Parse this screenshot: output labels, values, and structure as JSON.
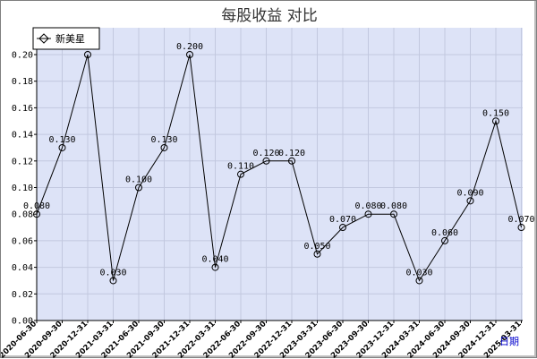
{
  "chart_data": {
    "type": "line",
    "title": "每股收益  对比",
    "xlabel": "日期",
    "ylabel": "",
    "ylim": [
      0,
      0.2
    ],
    "yticks": [
      "0.00",
      "0.02",
      "0.04",
      "0.06",
      "0.08",
      "0.10",
      "0.12",
      "0.14",
      "0.16",
      "0.18",
      "0.20"
    ],
    "grid": true,
    "legend_position": "top-left",
    "categories": [
      "2020-06-30",
      "2020-09-30",
      "2020-12-31",
      "2021-03-31",
      "2021-06-30",
      "2021-09-30",
      "2021-12-31",
      "2022-03-31",
      "2022-06-30",
      "2022-09-30",
      "2022-12-31",
      "2023-03-31",
      "2023-06-30",
      "2023-09-30",
      "2023-12-31",
      "2024-03-31",
      "2024-06-30",
      "2024-09-30",
      "2024-12-31",
      "2025-03-31"
    ],
    "series": [
      {
        "name": "新美星",
        "values": [
          0.08,
          0.13,
          0.2,
          0.03,
          0.1,
          0.13,
          0.2,
          0.04,
          0.11,
          0.12,
          0.12,
          0.05,
          0.07,
          0.08,
          0.08,
          0.03,
          0.06,
          0.09,
          0.15,
          0.07
        ],
        "labels": [
          "0.080",
          "0.130",
          "",
          "0.030",
          "0.100",
          "0.130",
          "0.200",
          "0.040",
          "0.110",
          "0.120",
          "0.120",
          "0.050",
          "0.070",
          "0.080",
          "0.080",
          "0.030",
          "0.060",
          "0.090",
          "0.150",
          "0.070"
        ]
      }
    ]
  },
  "colors": {
    "plot_background": "#dde3f7",
    "grid": "#c2c8df",
    "line": "#000000",
    "axis": "#000000",
    "unit_label": "#0000cc"
  }
}
